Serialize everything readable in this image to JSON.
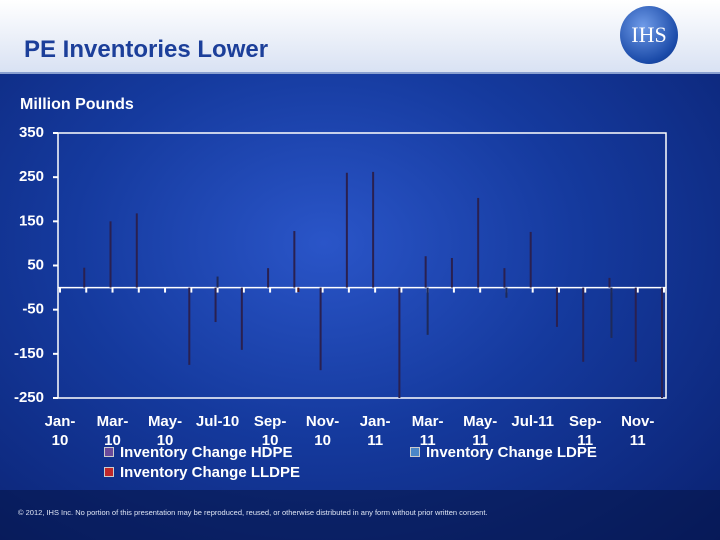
{
  "title": "PE Inventories Lower",
  "logo": "IHS",
  "footer": "© 2012, IHS Inc. No portion of this presentation may be reproduced, reused, or otherwise distributed in any form without prior written consent.",
  "chart_data": {
    "type": "bar",
    "y_axis_label": "Million Pounds",
    "categories": [
      "Jan-10",
      null,
      "Mar-10",
      null,
      "May-10",
      null,
      "Jul-10",
      null,
      "Sep-10",
      null,
      "Nov-10",
      null,
      "Jan-11",
      null,
      "Mar-11",
      null,
      "May-11",
      null,
      "Jul-11",
      null,
      "Sep-11",
      null,
      "Nov-11",
      null
    ],
    "series": [
      {
        "name": "Inventory Change HDPE",
        "color": "#2a2050",
        "values": [
          null,
          45,
          150,
          168,
          null,
          -175,
          -78,
          -141,
          44,
          128,
          -187,
          260,
          262,
          -250,
          71,
          67,
          203,
          44,
          126,
          -89,
          -168,
          22,
          -168,
          -250
        ]
      },
      {
        "name": "Inventory Change LDPE",
        "color": "#1e2a5a",
        "values": [
          null,
          null,
          null,
          null,
          null,
          null,
          25,
          null,
          null,
          null,
          null,
          null,
          null,
          null,
          -107,
          null,
          null,
          -23,
          null,
          null,
          null,
          -114,
          null,
          null
        ]
      },
      {
        "name": "Inventory Change LLDPE",
        "color": "#501820",
        "values": [
          null,
          null,
          null,
          null,
          null,
          null,
          null,
          null,
          null,
          -10,
          null,
          null,
          null,
          null,
          null,
          null,
          null,
          null,
          null,
          null,
          null,
          null,
          null,
          null
        ]
      }
    ],
    "legend_colors": [
      "#6a4a9a",
      "#4a86c8",
      "#c0282a"
    ],
    "ylim": [
      -250,
      350
    ],
    "yticks": [
      350,
      250,
      150,
      50,
      -50,
      -150,
      -250
    ],
    "legend": "bottom"
  }
}
